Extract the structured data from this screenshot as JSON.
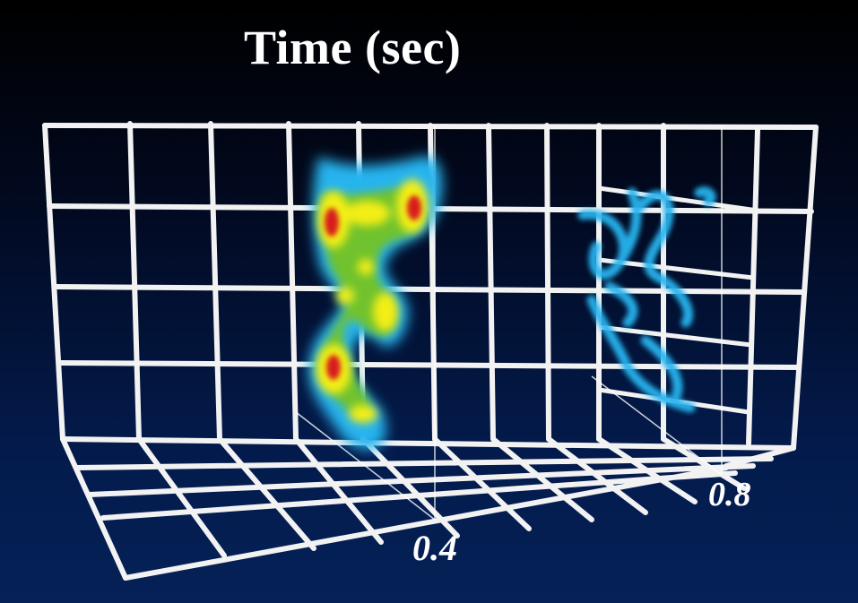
{
  "title": "Time (sec)",
  "axis": {
    "ticks": [
      "0.4",
      "0.8"
    ]
  },
  "colors": {
    "grid": "#f2f2f2",
    "blob_cold": "#27b4ef",
    "blob_mid": "#6fc22e",
    "blob_warm": "#f3ee12",
    "blob_hot": "#d81e1e"
  }
}
